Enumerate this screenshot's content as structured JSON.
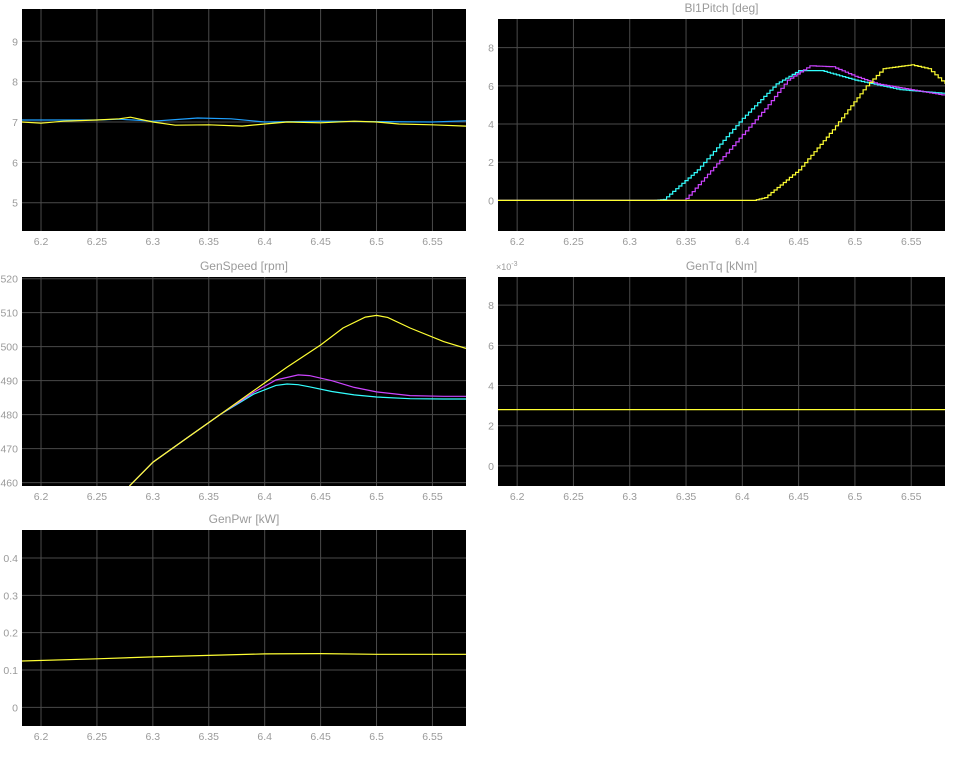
{
  "chart_data": [
    {
      "type": "line",
      "title": "",
      "xlabel": "",
      "ylabel": "",
      "xlim": [
        6.183,
        6.58
      ],
      "ylim": [
        4.3,
        9.8
      ],
      "xticks": [
        6.2,
        6.25,
        6.3,
        6.35,
        6.4,
        6.45,
        6.5,
        6.55
      ],
      "xtick_labels": [
        "6.2",
        "6.25",
        "6.3",
        "6.35",
        "6.4",
        "6.45",
        "6.5",
        "6.55"
      ],
      "yticks": [
        5,
        6,
        7,
        8,
        9
      ],
      "ytick_labels": [
        "5",
        "6",
        "7",
        "8",
        "9"
      ],
      "grid": true,
      "series": [
        {
          "color": "#1ea0ff",
          "x": [
            6.183,
            6.25,
            6.27,
            6.3,
            6.32,
            6.34,
            6.37,
            6.4,
            6.45,
            6.5,
            6.55,
            6.58
          ],
          "y": [
            7.05,
            7.05,
            7.07,
            7.02,
            7.06,
            7.1,
            7.08,
            7.0,
            7.02,
            7.01,
            7.0,
            7.03
          ]
        },
        {
          "color": "#ffff33",
          "x": [
            6.183,
            6.2,
            6.22,
            6.25,
            6.27,
            6.28,
            6.3,
            6.32,
            6.35,
            6.38,
            6.4,
            6.42,
            6.45,
            6.48,
            6.5,
            6.52,
            6.55,
            6.58
          ],
          "y": [
            7.0,
            6.97,
            7.02,
            7.05,
            7.08,
            7.12,
            7.0,
            6.92,
            6.93,
            6.9,
            6.95,
            7.0,
            6.98,
            7.02,
            7.0,
            6.95,
            6.93,
            6.9
          ]
        }
      ]
    },
    {
      "type": "line",
      "title": "Bl1Pitch [deg]",
      "xlabel": "",
      "ylabel": "",
      "xlim": [
        6.183,
        6.58
      ],
      "ylim": [
        -1.6,
        9.5
      ],
      "xticks": [
        6.2,
        6.25,
        6.3,
        6.35,
        6.4,
        6.45,
        6.5,
        6.55
      ],
      "xtick_labels": [
        "6.2",
        "6.25",
        "6.3",
        "6.35",
        "6.4",
        "6.45",
        "6.5",
        "6.55"
      ],
      "yticks": [
        0,
        2,
        4,
        6,
        8
      ],
      "ytick_labels": [
        "0",
        "2",
        "4",
        "6",
        "8"
      ],
      "grid": true,
      "series": [
        {
          "color": "#33ffff",
          "step": true,
          "x": [
            6.183,
            6.32,
            6.33,
            6.36,
            6.4,
            6.43,
            6.45,
            6.47,
            6.5,
            6.54,
            6.58
          ],
          "y": [
            0,
            0,
            0.05,
            1.6,
            4.3,
            6.1,
            6.8,
            6.8,
            6.3,
            5.8,
            5.6
          ]
        },
        {
          "color": "#cc44ff",
          "step": true,
          "x": [
            6.183,
            6.347,
            6.35,
            6.38,
            6.42,
            6.44,
            6.46,
            6.48,
            6.5,
            6.52,
            6.55,
            6.58
          ],
          "y": [
            0,
            0,
            0.1,
            2.1,
            4.8,
            6.3,
            7.05,
            7.0,
            6.5,
            6.1,
            5.8,
            5.5
          ]
        },
        {
          "color": "#ffff33",
          "step": true,
          "x": [
            6.183,
            6.41,
            6.42,
            6.45,
            6.48,
            6.51,
            6.525,
            6.55,
            6.565,
            6.58
          ],
          "y": [
            0,
            0,
            0.15,
            1.6,
            3.7,
            6.0,
            6.9,
            7.1,
            6.9,
            6.1
          ]
        }
      ]
    },
    {
      "type": "line",
      "title": "GenSpeed [rpm]",
      "xlabel": "",
      "ylabel": "",
      "xlim": [
        6.183,
        6.58
      ],
      "ylim": [
        459,
        520.5
      ],
      "xticks": [
        6.2,
        6.25,
        6.3,
        6.35,
        6.4,
        6.45,
        6.5,
        6.55
      ],
      "xtick_labels": [
        "6.2",
        "6.25",
        "6.3",
        "6.35",
        "6.4",
        "6.45",
        "6.5",
        "6.55"
      ],
      "yticks": [
        460,
        470,
        480,
        490,
        500,
        510,
        520
      ],
      "ytick_labels": [
        "460",
        "470",
        "480",
        "490",
        "500",
        "510",
        "520"
      ],
      "grid": true,
      "series": [
        {
          "color": "#33ffff",
          "x": [
            6.279,
            6.3,
            6.33,
            6.36,
            6.39,
            6.41,
            6.42,
            6.43,
            6.44,
            6.46,
            6.48,
            6.5,
            6.53,
            6.56,
            6.58
          ],
          "y": [
            459,
            466,
            473,
            480,
            486,
            488.6,
            489.0,
            488.8,
            488.2,
            486.8,
            485.8,
            485.2,
            484.7,
            484.6,
            484.6
          ]
        },
        {
          "color": "#cc44ff",
          "x": [
            6.279,
            6.3,
            6.33,
            6.36,
            6.39,
            6.41,
            6.43,
            6.44,
            6.46,
            6.48,
            6.5,
            6.53,
            6.56,
            6.58
          ],
          "y": [
            459,
            466,
            473,
            480,
            486.5,
            490.2,
            491.7,
            491.5,
            490.0,
            488.0,
            486.7,
            485.6,
            485.4,
            485.4
          ]
        },
        {
          "color": "#ffff33",
          "x": [
            6.279,
            6.3,
            6.33,
            6.36,
            6.39,
            6.42,
            6.45,
            6.47,
            6.49,
            6.5,
            6.51,
            6.53,
            6.56,
            6.58
          ],
          "y": [
            459,
            466,
            473,
            480,
            487,
            494,
            500.5,
            505.5,
            508.7,
            509.2,
            508.6,
            505.5,
            501.5,
            499.5
          ]
        }
      ]
    },
    {
      "type": "line",
      "title": "GenTq [kNm]",
      "xlabel": "",
      "ylabel": "",
      "y_exponent_label": "×10",
      "y_exponent": "-3",
      "xlim": [
        6.183,
        6.58
      ],
      "ylim": [
        -1.0,
        9.4
      ],
      "xticks": [
        6.2,
        6.25,
        6.3,
        6.35,
        6.4,
        6.45,
        6.5,
        6.55
      ],
      "xtick_labels": [
        "6.2",
        "6.25",
        "6.3",
        "6.35",
        "6.4",
        "6.45",
        "6.5",
        "6.55"
      ],
      "yticks": [
        0,
        2,
        4,
        6,
        8
      ],
      "ytick_labels": [
        "0",
        "2",
        "4",
        "6",
        "8"
      ],
      "grid": true,
      "series": [
        {
          "color": "#ffff33",
          "x": [
            6.183,
            6.58
          ],
          "y": [
            2.8,
            2.8
          ]
        }
      ]
    },
    {
      "type": "line",
      "title": "GenPwr [kW]",
      "xlabel": "",
      "ylabel": "",
      "xlim": [
        6.183,
        6.58
      ],
      "ylim": [
        -0.05,
        0.475
      ],
      "xticks": [
        6.2,
        6.25,
        6.3,
        6.35,
        6.4,
        6.45,
        6.5,
        6.55
      ],
      "xtick_labels": [
        "6.2",
        "6.25",
        "6.3",
        "6.35",
        "6.4",
        "6.45",
        "6.5",
        "6.55"
      ],
      "yticks": [
        0,
        0.1,
        0.2,
        0.3,
        0.4
      ],
      "ytick_labels": [
        "0",
        "0.1",
        "0.2",
        "0.3",
        "0.4"
      ],
      "grid": true,
      "series": [
        {
          "color": "#ffff33",
          "x": [
            6.183,
            6.25,
            6.3,
            6.35,
            6.4,
            6.45,
            6.5,
            6.55,
            6.58
          ],
          "y": [
            0.124,
            0.13,
            0.135,
            0.139,
            0.143,
            0.144,
            0.142,
            0.142,
            0.142
          ]
        }
      ]
    }
  ],
  "colors": {
    "plot_background": "#000000",
    "grid": "#4a4a4a",
    "axis_text": "#9a9a9a",
    "page_background": "#ffffff"
  }
}
